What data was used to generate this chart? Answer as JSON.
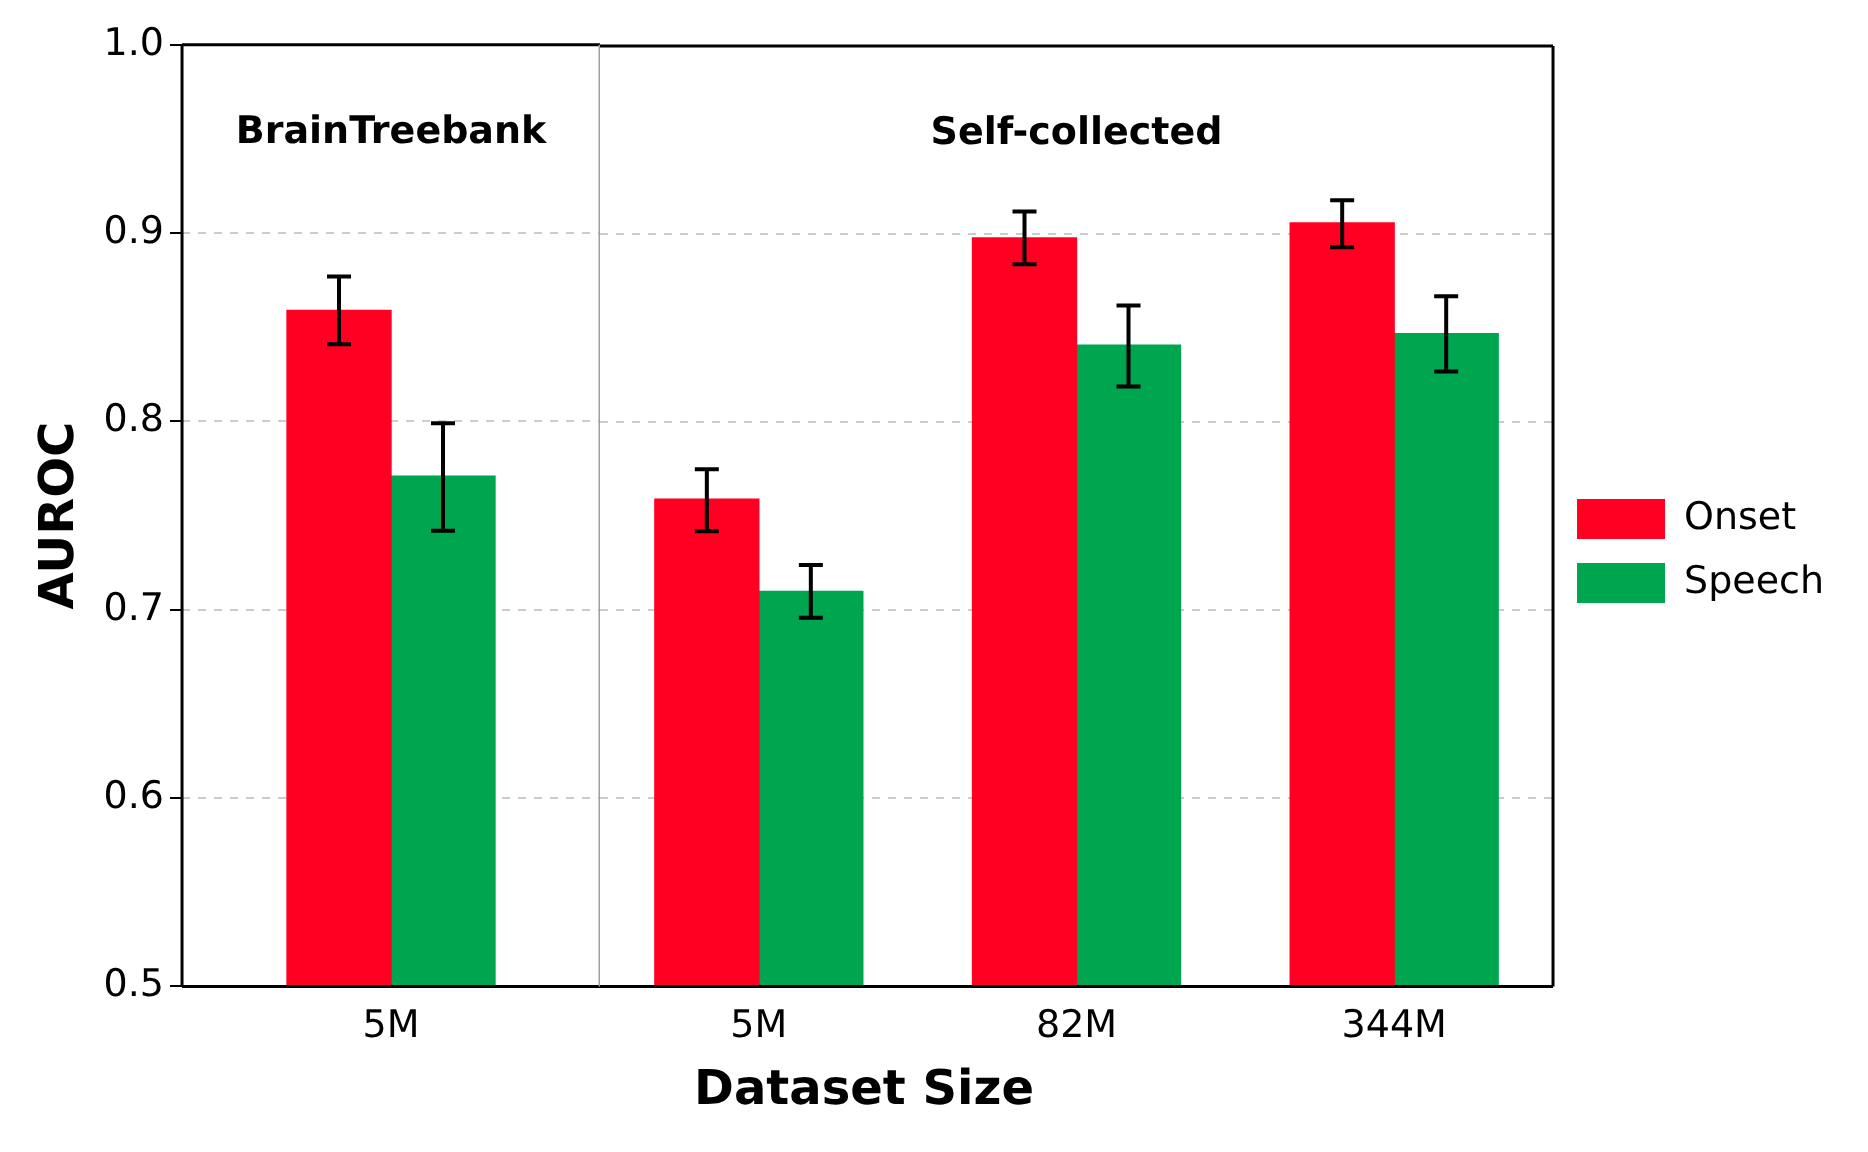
{
  "chart_data": [
    {
      "type": "bar",
      "ylabel": "AUROC",
      "categories": [
        "5M"
      ],
      "series": [
        {
          "color": "#ff0022",
          "values": [
            0.859
          ],
          "errors": [
            [
              0.841,
              0.877
            ]
          ]
        },
        {
          "color": "#00a550",
          "values": [
            0.771
          ],
          "errors": [
            [
              0.742,
              0.799
            ]
          ]
        }
      ],
      "ylim": [
        0.5,
        1.0
      ],
      "yticks": [
        0.5,
        0.6,
        0.7,
        0.8,
        0.9,
        {
          "value": 1.0,
          "label": "1.0"
        }
      ],
      "grid": "y",
      "annotations": [
        "BrainTreebank"
      ]
    },
    {
      "type": "bar",
      "xlabel": "Dataset Size",
      "categories": [
        "5M",
        "82M",
        "344M"
      ],
      "series": [
        {
          "name": "Onset",
          "color": "#ff0022",
          "values": [
            0.759,
            0.898,
            0.906
          ],
          "errors": [
            [
              0.742,
              0.775
            ],
            [
              0.884,
              0.912
            ],
            [
              0.893,
              0.918
            ]
          ]
        },
        {
          "name": "Speech",
          "color": "#00a550",
          "values": [
            0.71,
            0.841,
            0.847
          ],
          "errors": [
            [
              0.696,
              0.724
            ],
            [
              0.819,
              0.862
            ],
            [
              0.827,
              0.867
            ]
          ]
        }
      ],
      "ylim": [
        0.5,
        1.0
      ],
      "yticks": [
        0.5,
        0.6,
        0.7,
        0.8,
        0.9,
        1.0
      ],
      "grid": "y",
      "legend": "right",
      "tick_labels": "x",
      "annotations": [
        "Self-collected"
      ]
    }
  ]
}
